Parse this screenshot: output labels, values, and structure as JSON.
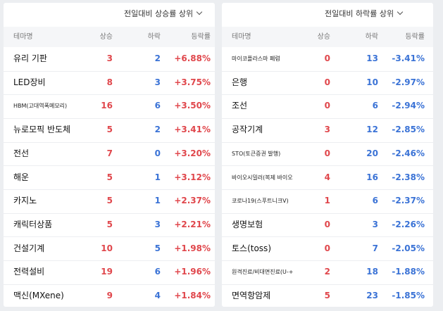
{
  "left": {
    "sort_label": "전일대비 상승률 상위",
    "headers": {
      "name": "테마명",
      "up": "상승",
      "down": "하락",
      "rate": "등락률"
    },
    "rows": [
      {
        "name": "유리 기판",
        "up": "3",
        "down": "2",
        "rate": "+6.88%"
      },
      {
        "name": "LED장비",
        "up": "8",
        "down": "3",
        "rate": "+3.75%"
      },
      {
        "name": "HBM(고대역폭메모리)",
        "up": "16",
        "down": "6",
        "rate": "+3.50%",
        "small": true
      },
      {
        "name": "뉴로모픽 반도체",
        "up": "5",
        "down": "2",
        "rate": "+3.41%"
      },
      {
        "name": "전선",
        "up": "7",
        "down": "0",
        "rate": "+3.20%"
      },
      {
        "name": "해운",
        "up": "5",
        "down": "1",
        "rate": "+3.12%"
      },
      {
        "name": "카지노",
        "up": "5",
        "down": "1",
        "rate": "+2.37%"
      },
      {
        "name": "캐릭터상품",
        "up": "5",
        "down": "3",
        "rate": "+2.21%"
      },
      {
        "name": "건설기계",
        "up": "10",
        "down": "5",
        "rate": "+1.98%"
      },
      {
        "name": "전력설비",
        "up": "19",
        "down": "6",
        "rate": "+1.96%"
      },
      {
        "name": "맥신(MXene)",
        "up": "9",
        "down": "4",
        "rate": "+1.84%"
      }
    ]
  },
  "right": {
    "sort_label": "전일대비 하락률 상위",
    "headers": {
      "name": "테마명",
      "up": "상승",
      "down": "하락",
      "rate": "등락률"
    },
    "rows": [
      {
        "name": "마이코플라스마 폐렴",
        "up": "0",
        "down": "13",
        "rate": "-3.41%",
        "small": true
      },
      {
        "name": "은행",
        "up": "0",
        "down": "10",
        "rate": "-2.97%"
      },
      {
        "name": "조선",
        "up": "0",
        "down": "6",
        "rate": "-2.94%"
      },
      {
        "name": "공작기계",
        "up": "3",
        "down": "12",
        "rate": "-2.85%"
      },
      {
        "name": "STO(토큰증권 발행)",
        "up": "0",
        "down": "20",
        "rate": "-2.46%",
        "small": true
      },
      {
        "name": "바이오시밀러(복제 바이오",
        "up": "4",
        "down": "16",
        "rate": "-2.38%",
        "small": true
      },
      {
        "name": "코로나19(스푸트니크V)",
        "up": "1",
        "down": "6",
        "rate": "-2.37%",
        "small": true
      },
      {
        "name": "생명보험",
        "up": "0",
        "down": "3",
        "rate": "-2.26%"
      },
      {
        "name": "토스(toss)",
        "up": "0",
        "down": "7",
        "rate": "-2.05%"
      },
      {
        "name": "원격진료/비대면진료(U-+",
        "up": "2",
        "down": "18",
        "rate": "-1.88%",
        "small": true
      },
      {
        "name": "면역항암제",
        "up": "5",
        "down": "23",
        "rate": "-1.85%"
      }
    ]
  }
}
